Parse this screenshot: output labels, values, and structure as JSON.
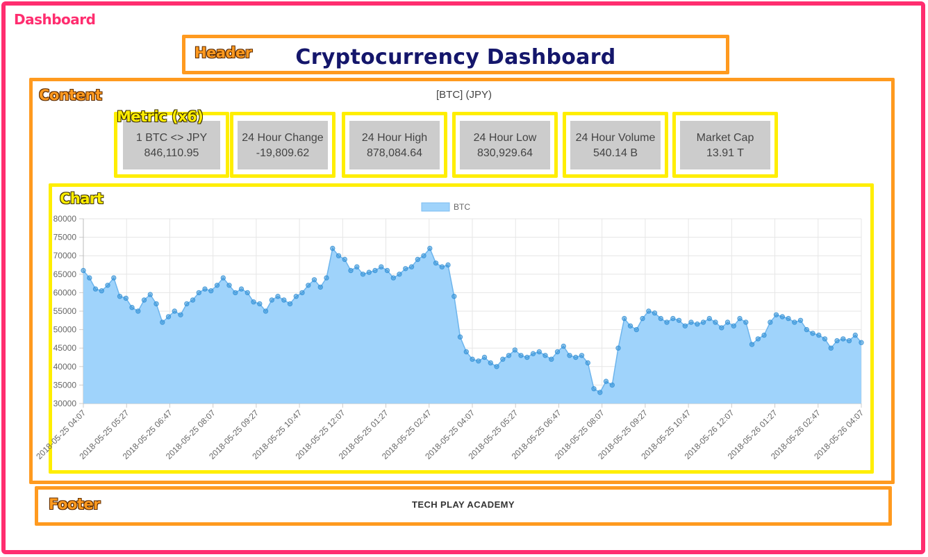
{
  "labels": {
    "dashboard": "Dashboard",
    "header": "Header",
    "content": "Content",
    "metric": "Metric (x6)",
    "chart": "Chart",
    "footer": "Footer"
  },
  "header": {
    "title": "Cryptocurrency Dashboard"
  },
  "content": {
    "subtitle": "[BTC] (JPY)"
  },
  "metrics": [
    {
      "label": "1 BTC <> JPY",
      "value": "846,110.95"
    },
    {
      "label": "24 Hour Change",
      "value": "-19,809.62"
    },
    {
      "label": "24 Hour High",
      "value": "878,084.64"
    },
    {
      "label": "24 Hour Low",
      "value": "830,929.64"
    },
    {
      "label": "24 Hour Volume",
      "value": "540.14 B"
    },
    {
      "label": "Market Cap",
      "value": "13.91 T"
    }
  ],
  "footer": {
    "text": "TECH PLAY ACADEMY"
  },
  "colors": {
    "dashboard_border": "#ff2d6f",
    "section_border": "#ff9a1f",
    "component_border": "#ffee00",
    "title": "#14166b",
    "metric_bg": "#cccccc",
    "area_fill": "#9fd3fb",
    "point": "#2f8fd6"
  },
  "chart_data": {
    "type": "area",
    "legend": [
      "BTC"
    ],
    "legend_position": "top",
    "grid": true,
    "ylim": [
      30000,
      80000
    ],
    "yticks": [
      30000,
      35000,
      40000,
      45000,
      50000,
      55000,
      60000,
      65000,
      70000,
      75000,
      80000
    ],
    "xticks": [
      "2018-05-25 04:07",
      "2018-05-25 05:27",
      "2018-05-25 06:47",
      "2018-05-25 08:07",
      "2018-05-25 09:27",
      "2018-05-25 10:47",
      "2018-05-25 12:07",
      "2018-05-25 01:27",
      "2018-05-25 02:47",
      "2018-05-25 04:07",
      "2018-05-25 05:27",
      "2018-05-25 06:47",
      "2018-05-25 08:07",
      "2018-05-25 09:27",
      "2018-05-25 10:47",
      "2018-05-26 12:07",
      "2018-05-26 01:27",
      "2018-05-26 02:47",
      "2018-05-26 04:07"
    ],
    "series": [
      {
        "name": "BTC",
        "values": [
          66000,
          64000,
          61000,
          60500,
          62000,
          64000,
          59000,
          58500,
          56000,
          55000,
          58000,
          59500,
          57000,
          52000,
          53500,
          55000,
          54000,
          57000,
          58000,
          60000,
          61000,
          60500,
          62000,
          64000,
          62000,
          60000,
          61000,
          60000,
          57500,
          57000,
          55000,
          58000,
          59000,
          58000,
          57000,
          59000,
          60000,
          62000,
          63500,
          61500,
          64000,
          72000,
          70000,
          69000,
          66000,
          67000,
          65000,
          65500,
          66000,
          67000,
          66000,
          64000,
          65000,
          66500,
          67000,
          69000,
          70000,
          72000,
          68000,
          67000,
          67500,
          59000,
          48000,
          44000,
          42000,
          41500,
          42500,
          41000,
          40000,
          42000,
          43000,
          44500,
          43000,
          42500,
          43500,
          44000,
          43000,
          42000,
          44000,
          45500,
          43000,
          42500,
          43000,
          41000,
          34000,
          33000,
          36000,
          35000,
          45000,
          53000,
          51000,
          50000,
          53000,
          55000,
          54500,
          53000,
          52000,
          53000,
          52500,
          51000,
          52000,
          51500,
          52000,
          53000,
          52000,
          50500,
          52000,
          51000,
          53000,
          52000,
          46000,
          47500,
          48500,
          52000,
          54000,
          53500,
          53000,
          52000,
          52500,
          50000,
          49000,
          48500,
          47500,
          45000,
          47000,
          47500,
          47000,
          48500,
          46500
        ]
      }
    ]
  }
}
